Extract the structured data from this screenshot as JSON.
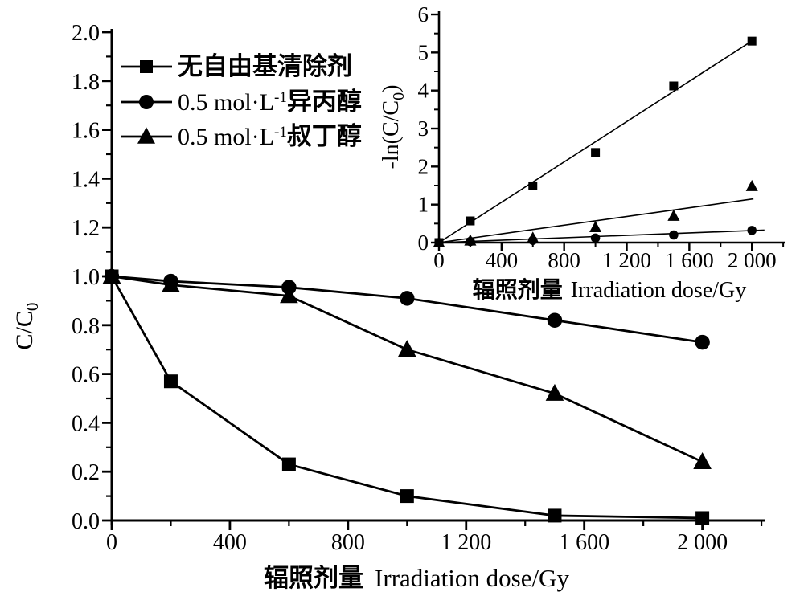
{
  "figure": {
    "background_color": "#ffffff",
    "line_color": "#000000"
  },
  "chart_data": [
    {
      "id": "main",
      "type": "line",
      "x": [
        0,
        200,
        600,
        1000,
        1500,
        2000
      ],
      "series": [
        {
          "name": "无自由基清除剂",
          "label_zh": "无自由基清除剂",
          "marker": "square",
          "values": [
            1.0,
            0.57,
            0.23,
            0.1,
            0.02,
            0.01
          ]
        },
        {
          "name": "0.5 mol·L⁻¹异丙醇",
          "label_latin": "0.5 mol·L",
          "label_sup": "-1",
          "label_zh": "异丙醇",
          "marker": "circle",
          "values": [
            1.0,
            0.98,
            0.955,
            0.91,
            0.82,
            0.73
          ]
        },
        {
          "name": "0.5 mol·L⁻¹叔丁醇",
          "label_latin": "0.5 mol·L",
          "label_sup": "-1",
          "label_zh": "叔丁醇",
          "marker": "triangle",
          "values": [
            1.0,
            0.965,
            0.92,
            0.7,
            0.52,
            0.24
          ]
        }
      ],
      "xlabel_zh": "辐照剂量",
      "xlabel_en": "Irradiation dose/Gy",
      "ylabel_pre": "C/C",
      "ylabel_sub": "0",
      "ylabel_post": "",
      "xlim": [
        0,
        2200
      ],
      "ylim": [
        0,
        2.0
      ],
      "xticks": [
        0,
        400,
        800,
        1200,
        1600,
        2000
      ],
      "xtick_labels": [
        "0",
        "400",
        "800",
        "1 200",
        "1 600",
        "2 000"
      ],
      "xminor_ticks": [
        200,
        600,
        1000,
        1400,
        1800,
        2200
      ],
      "yticks": [
        0,
        0.2,
        0.4,
        0.6,
        0.8,
        1.0,
        1.2,
        1.4,
        1.6,
        1.8,
        2.0
      ],
      "ytick_labels": [
        "0.0",
        "0.2",
        "0.4",
        "0.6",
        "0.8",
        "1.0",
        "1.2",
        "1.4",
        "1.6",
        "1.8",
        "2.0"
      ],
      "yminor_ticks": [
        0.1,
        0.3,
        0.5,
        0.7,
        0.9,
        1.1,
        1.3,
        1.5,
        1.7,
        1.9
      ],
      "grid": false,
      "legend_position": "inside-top-left"
    },
    {
      "id": "inset",
      "type": "scatter",
      "x": [
        0,
        200,
        600,
        1000,
        1500,
        2000
      ],
      "series": [
        {
          "name": "无自由基清除剂",
          "marker": "square",
          "values": [
            0,
            0.57,
            1.49,
            2.37,
            4.12,
            5.3
          ],
          "fit_line_end": {
            "x": 2010,
            "y": 5.33
          }
        },
        {
          "name": "0.5 mol·L⁻¹异丙醇",
          "marker": "circle",
          "values": [
            0,
            0.03,
            0.06,
            0.12,
            0.2,
            0.32
          ],
          "fit_line_end": {
            "x": 2080,
            "y": 0.33
          }
        },
        {
          "name": "0.5 mol·L⁻¹叔丁醇",
          "marker": "triangle",
          "values": [
            0,
            0.05,
            0.12,
            0.4,
            0.7,
            1.48
          ],
          "fit_line_end": {
            "x": 2010,
            "y": 1.15
          }
        }
      ],
      "xlabel_zh": "辐照剂量",
      "xlabel_en": "Irradiation dose/Gy",
      "ylabel_pre": "-ln(C/C",
      "ylabel_sub": "0",
      "ylabel_post": ")",
      "xlim": [
        0,
        2200
      ],
      "ylim": [
        0,
        6
      ],
      "xticks": [
        0,
        400,
        800,
        1200,
        1600,
        2000
      ],
      "xtick_labels": [
        "0",
        "400",
        "800",
        "1 200",
        "1 600",
        "2 000"
      ],
      "xminor_ticks": [
        200,
        600,
        1000,
        1400,
        1800,
        2200
      ],
      "yticks": [
        0,
        1,
        2,
        3,
        4,
        5,
        6
      ],
      "ytick_labels": [
        "0",
        "1",
        "2",
        "3",
        "4",
        "5",
        "6"
      ],
      "yminor_ticks": [
        0.5,
        1.5,
        2.5,
        3.5,
        4.5,
        5.5
      ],
      "grid": false,
      "legend_position": "none"
    }
  ]
}
